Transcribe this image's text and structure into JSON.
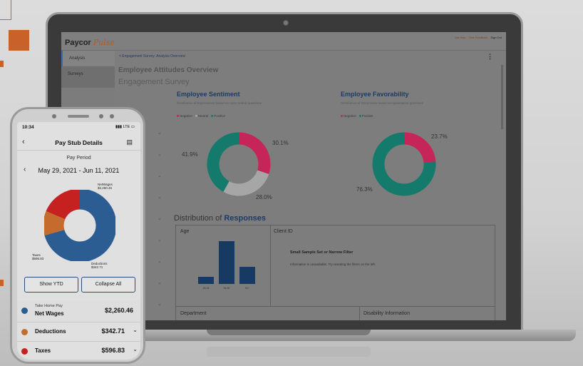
{
  "laptop_app": {
    "brand": "Paycor",
    "brand_suffix": "Pulse",
    "header_links": [
      "Get Help",
      "Give Feedback",
      "Sign Out"
    ],
    "sidebar": [
      {
        "label": "Analysis",
        "active": true
      },
      {
        "label": "Surveys",
        "active": false
      }
    ],
    "breadcrumb": "< Engagement Survey: Analysis Overview",
    "menu_icon": "more-vertical-icon",
    "page_title": "Employee Attitudes Overview",
    "page_subtitle": "Engagement Survey",
    "sentiment": {
      "title": "Employee Sentiment",
      "desc": "Distribution of Expressions based on open-ended questions",
      "legend": [
        "Negative",
        "Neutral",
        "Positive"
      ],
      "colors": [
        "#c6255a",
        "#a6a6a6",
        "#137a6c"
      ]
    },
    "favorability": {
      "title": "Employee Favorability",
      "desc": "Distribution of Responses based on quantitative questions",
      "legend": [
        "Negative",
        "Positive"
      ],
      "colors": [
        "#c6255a",
        "#137a6c"
      ]
    },
    "distribution": {
      "title_prefix": "Distribution of",
      "title_highlight": "Responses",
      "age_label": "Age",
      "client_label": "Client ID",
      "empty_title": "Small Sample Set or Narrow Filter",
      "empty_desc": "Information is unavailable. Try resetting the filters on the left.",
      "department_label": "Department",
      "disability_label": "Disability Information",
      "bar_color": "#173a63"
    }
  },
  "chart_data": [
    {
      "type": "pie",
      "title": "Employee Sentiment",
      "categories": [
        "Negative",
        "Neutral",
        "Positive"
      ],
      "values": [
        30.1,
        28.0,
        41.9
      ],
      "labels": [
        "30.1%",
        "28.0%",
        "41.9%"
      ]
    },
    {
      "type": "pie",
      "title": "Employee Favorability",
      "categories": [
        "Negative",
        "Positive"
      ],
      "values": [
        23.7,
        76.3
      ],
      "labels": [
        "23.7%",
        "76.3%"
      ]
    },
    {
      "type": "bar",
      "title": "Age",
      "categories": [
        "18-34",
        "35-50",
        "51+"
      ],
      "values": [
        1,
        6,
        2.4
      ],
      "grid": false
    },
    {
      "type": "pie",
      "title": "Pay Stub Details",
      "categories": [
        "Net Wages",
        "Deductions",
        "Taxes"
      ],
      "values": [
        2260.46,
        342.71,
        596.83
      ],
      "labels": [
        "NetWages $2,260.46",
        "Deductions $342.71",
        "Taxes $596.83"
      ]
    }
  ],
  "phone_app": {
    "time": "10:34",
    "status": "LTE",
    "nav_title": "Pay Stub Details",
    "back_icon": "chevron-left-icon",
    "nav_icon": "document-icon",
    "period_label": "Pay Period",
    "period": "May 29, 2021 - Jun 11, 2021",
    "pie_labels": {
      "net_name": "NetWages",
      "net_amt": "$2,260.46",
      "taxes_name": "Taxes",
      "taxes_amt": "$596.83",
      "ded_name": "Deductions",
      "ded_amt": "$342.71"
    },
    "show_ytd": "Show YTD",
    "collapse_all": "Collapse All",
    "rows": [
      {
        "sub": "Take Home Pay",
        "name": "Net Wages",
        "amount": "$2,260.46",
        "color": "#2b5d92"
      },
      {
        "name": "Deductions",
        "amount": "$342.71",
        "color": "#c56b2e"
      },
      {
        "name": "Taxes",
        "amount": "$596.83",
        "color": "#c62121"
      }
    ]
  }
}
